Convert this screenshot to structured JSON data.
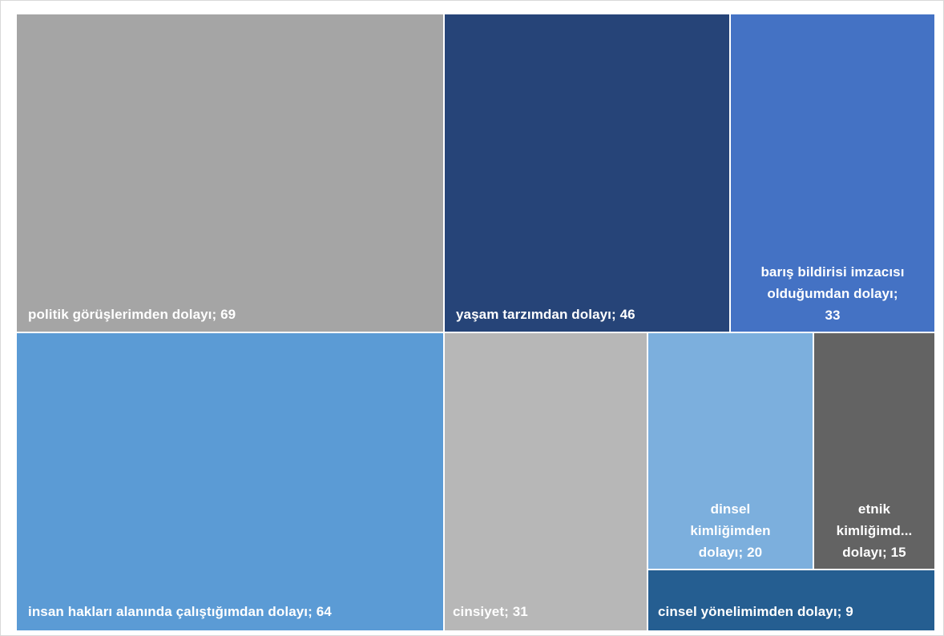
{
  "chart_data": {
    "type": "treemap",
    "title": "",
    "items": [
      {
        "label": "politik görüşlerimden dolayı; 69",
        "name": "politik görüşlerimden dolayı",
        "value": 69,
        "color": "#a5a5a5"
      },
      {
        "label": "insan hakları alanında çalıştığımdan dolayı; 64",
        "name": "insan hakları alanında çalıştığımdan dolayı",
        "value": 64,
        "color": "#5b9bd5"
      },
      {
        "label": "yaşam tarzımdan dolayı; 46",
        "name": "yaşam tarzımdan dolayı",
        "value": 46,
        "color": "#264478"
      },
      {
        "label": "barış bildirisi imzacısı olduğumdan dolayı; 33",
        "name": "barış bildirisi imzacısı olduğumdan dolayı",
        "value": 33,
        "color": "#4472c4"
      },
      {
        "label": "cinsiyet; 31",
        "name": "cinsiyet",
        "value": 31,
        "color": "#b7b7b7"
      },
      {
        "label": "dinsel kimliğimden dolayı; 20",
        "name": "dinsel kimliğimden dolayı",
        "value": 20,
        "color": "#7cafdd"
      },
      {
        "label": "etnik kimliğimd... dolayı; 15",
        "name": "etnik kimliğimd... dolayı",
        "value": 15,
        "color": "#636363"
      },
      {
        "label": "cinsel yönelimimden dolayı; 9",
        "name": "cinsel yönelimimden dolayı",
        "value": 9,
        "color": "#255e91"
      }
    ]
  }
}
